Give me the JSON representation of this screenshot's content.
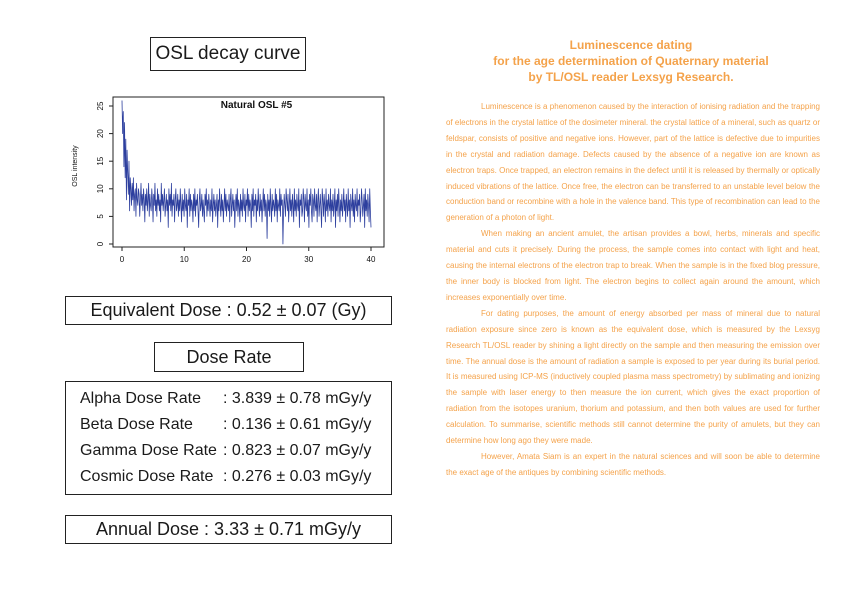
{
  "left_panel": {
    "title": "OSL decay curve",
    "equivalent_dose": "Equivalent Dose : 0.52 ± 0.07 (Gy)",
    "dose_rate_title": "Dose Rate",
    "dose_rates": [
      {
        "label": "Alpha Dose Rate",
        "value": ": 3.839 ± 0.78 mGy/y"
      },
      {
        "label": "Beta Dose Rate",
        "value": ": 0.136 ± 0.61 mGy/y"
      },
      {
        "label": "Gamma Dose Rate",
        "value": ": 0.823 ± 0.07 mGy/y"
      },
      {
        "label": "Cosmic Dose Rate",
        "value": ": 0.276 ± 0.03 mGy/y"
      }
    ],
    "annual_dose": "Annual Dose : 3.33 ± 0.71 mGy/y"
  },
  "chart_data": {
    "type": "line",
    "title": "Natural OSL #5",
    "xlabel": "",
    "ylabel": "OSL intensity",
    "xlim": [
      0,
      40
    ],
    "ylim": [
      0,
      25
    ],
    "x_ticks": [
      0,
      10,
      20,
      30,
      40
    ],
    "y_ticks": [
      0,
      5,
      10,
      15,
      20,
      25
    ],
    "grid": false,
    "line_color": "#2d3f9e",
    "series": [
      {
        "values": [
          26,
          20,
          24,
          14,
          22,
          12,
          19,
          8,
          17,
          13,
          9,
          15,
          6,
          12,
          10,
          7,
          11,
          8,
          12,
          6,
          9,
          10,
          5,
          11,
          8,
          7,
          10,
          9,
          5,
          8,
          11,
          7,
          9,
          6,
          10,
          8,
          4,
          9,
          7,
          10,
          6,
          8,
          11,
          5,
          9,
          7,
          6,
          10,
          8,
          4,
          9,
          7,
          11,
          6,
          8,
          5,
          10,
          7,
          9,
          6,
          8,
          4,
          11,
          7,
          9,
          6,
          8,
          10,
          5,
          7,
          9,
          6,
          8,
          3,
          10,
          7,
          9,
          6,
          11,
          5,
          8,
          7,
          9,
          4,
          8,
          10,
          6,
          7,
          9,
          5,
          8,
          6,
          10,
          7,
          4,
          9,
          6,
          8,
          5,
          10,
          7,
          6,
          9,
          3,
          8,
          7,
          10,
          5,
          9,
          6,
          8,
          7,
          4,
          9,
          6,
          10,
          5,
          8,
          7,
          9,
          6,
          3,
          8,
          10,
          6,
          7,
          9,
          5,
          8,
          6,
          4,
          9,
          7,
          10,
          5,
          8,
          6,
          9,
          7,
          5,
          8,
          6,
          10,
          4,
          7,
          9,
          6,
          8,
          5,
          7,
          9,
          3,
          8,
          6,
          10,
          7,
          5,
          9,
          6,
          8,
          4,
          7,
          10,
          6,
          9,
          5,
          8,
          7,
          6,
          9,
          4,
          8,
          10,
          5,
          7,
          9,
          6,
          8,
          3,
          7,
          9,
          6,
          10,
          5,
          8,
          7,
          4,
          9,
          6,
          8,
          5,
          10,
          7,
          6,
          9,
          4,
          8,
          7,
          10,
          5,
          9,
          6,
          8,
          7,
          3,
          9,
          6,
          10,
          5,
          8,
          7,
          9,
          4,
          8,
          6,
          10,
          7,
          5,
          9,
          6,
          8,
          4,
          7,
          10,
          6,
          9,
          5,
          8,
          7,
          1,
          9,
          6,
          8,
          5,
          10,
          7,
          4,
          9,
          6,
          8,
          7,
          5,
          10,
          6,
          9,
          4,
          8,
          7,
          6,
          10,
          5,
          9,
          7,
          8,
          0,
          6,
          9,
          7,
          5,
          10,
          8,
          6,
          9,
          4,
          7,
          10,
          6,
          8,
          5,
          9,
          7,
          4,
          10,
          6,
          8,
          5,
          9,
          7,
          6,
          10,
          3,
          8,
          7,
          9,
          5,
          6,
          10,
          8,
          4,
          9,
          7,
          6,
          10,
          5,
          8,
          3,
          9,
          7,
          10,
          6,
          4,
          9,
          8,
          5,
          10,
          7,
          6,
          9,
          4,
          8,
          10,
          5,
          7,
          9,
          6,
          3,
          10,
          8,
          5,
          9,
          7,
          4,
          10,
          6,
          8,
          5,
          9,
          7,
          6,
          10,
          4,
          8,
          6,
          9,
          5,
          7,
          10,
          3,
          8,
          6,
          9,
          5,
          10,
          7,
          4,
          8,
          6,
          9,
          5,
          7,
          10,
          6,
          8,
          4,
          9,
          7,
          5,
          10,
          6,
          8,
          3,
          9,
          7,
          6,
          10,
          5,
          8,
          4,
          9,
          7,
          6,
          10,
          5,
          8,
          7,
          9,
          4,
          6,
          10,
          8,
          5,
          7,
          9,
          3,
          10,
          6,
          8,
          5,
          9,
          7,
          4,
          10,
          6,
          3
        ]
      }
    ]
  },
  "article": {
    "title_lines": [
      "Luminescence dating",
      "for the age determination of Quaternary material",
      "by TL/OSL reader Lexsyg Research."
    ],
    "paragraphs": [
      "Luminescence is a phenomenon caused by the interaction of ionising radiation and the trapping of electrons in the crystal lattice of the dosimeter mineral. the crystal lattice of a mineral, such as quartz or feldspar, consists of positive and negative ions. However, part of the lattice is defective due to impurities in the crystal and radiation damage. Defects caused by the absence of a negative ion are known as electron traps. Once trapped, an electron remains in the defect until it is released by thermally or optically induced vibrations of the lattice. Once free, the electron can be transferred to an unstable level below the conduction band or recombine with a hole in the valence band. This type of recombination can lead to the generation of a photon of light.",
      "When making an ancient amulet, the artisan provides a bowl, herbs, minerals and specific material and cuts it precisely. During the process, the sample comes into contact with light and heat, causing the internal electrons of the electron trap to break. When the sample is in the fixed blog pressure, the inner body is blocked from light. The electron begins to collect again around the amount, which increases exponentially over time.",
      "For dating purposes, the amount of energy absorbed per mass of mineral due to natural radiation exposure since zero is known as the equivalent dose, which is measured by the Lexsyg Research TL/OSL reader by shining a light directly on the sample and then measuring the emission over time. The annual dose is the amount of radiation a sample is exposed to per year during its burial period. It is measured using ICP-MS (inductively coupled plasma mass spectrometry) by sublimating and ionizing the sample with laser energy to then measure the ion current, which gives the exact proportion of radiation from the isotopes uranium, thorium and potassium, and then both values are used for further calculation. To summarise, scientific methods still cannot determine the purity of amulets, but they can determine how long ago they were made.",
      "However, Amata Siam is an expert in the natural sciences and will soon be able to determine the exact age of the antiques by combining scientific methods."
    ]
  }
}
